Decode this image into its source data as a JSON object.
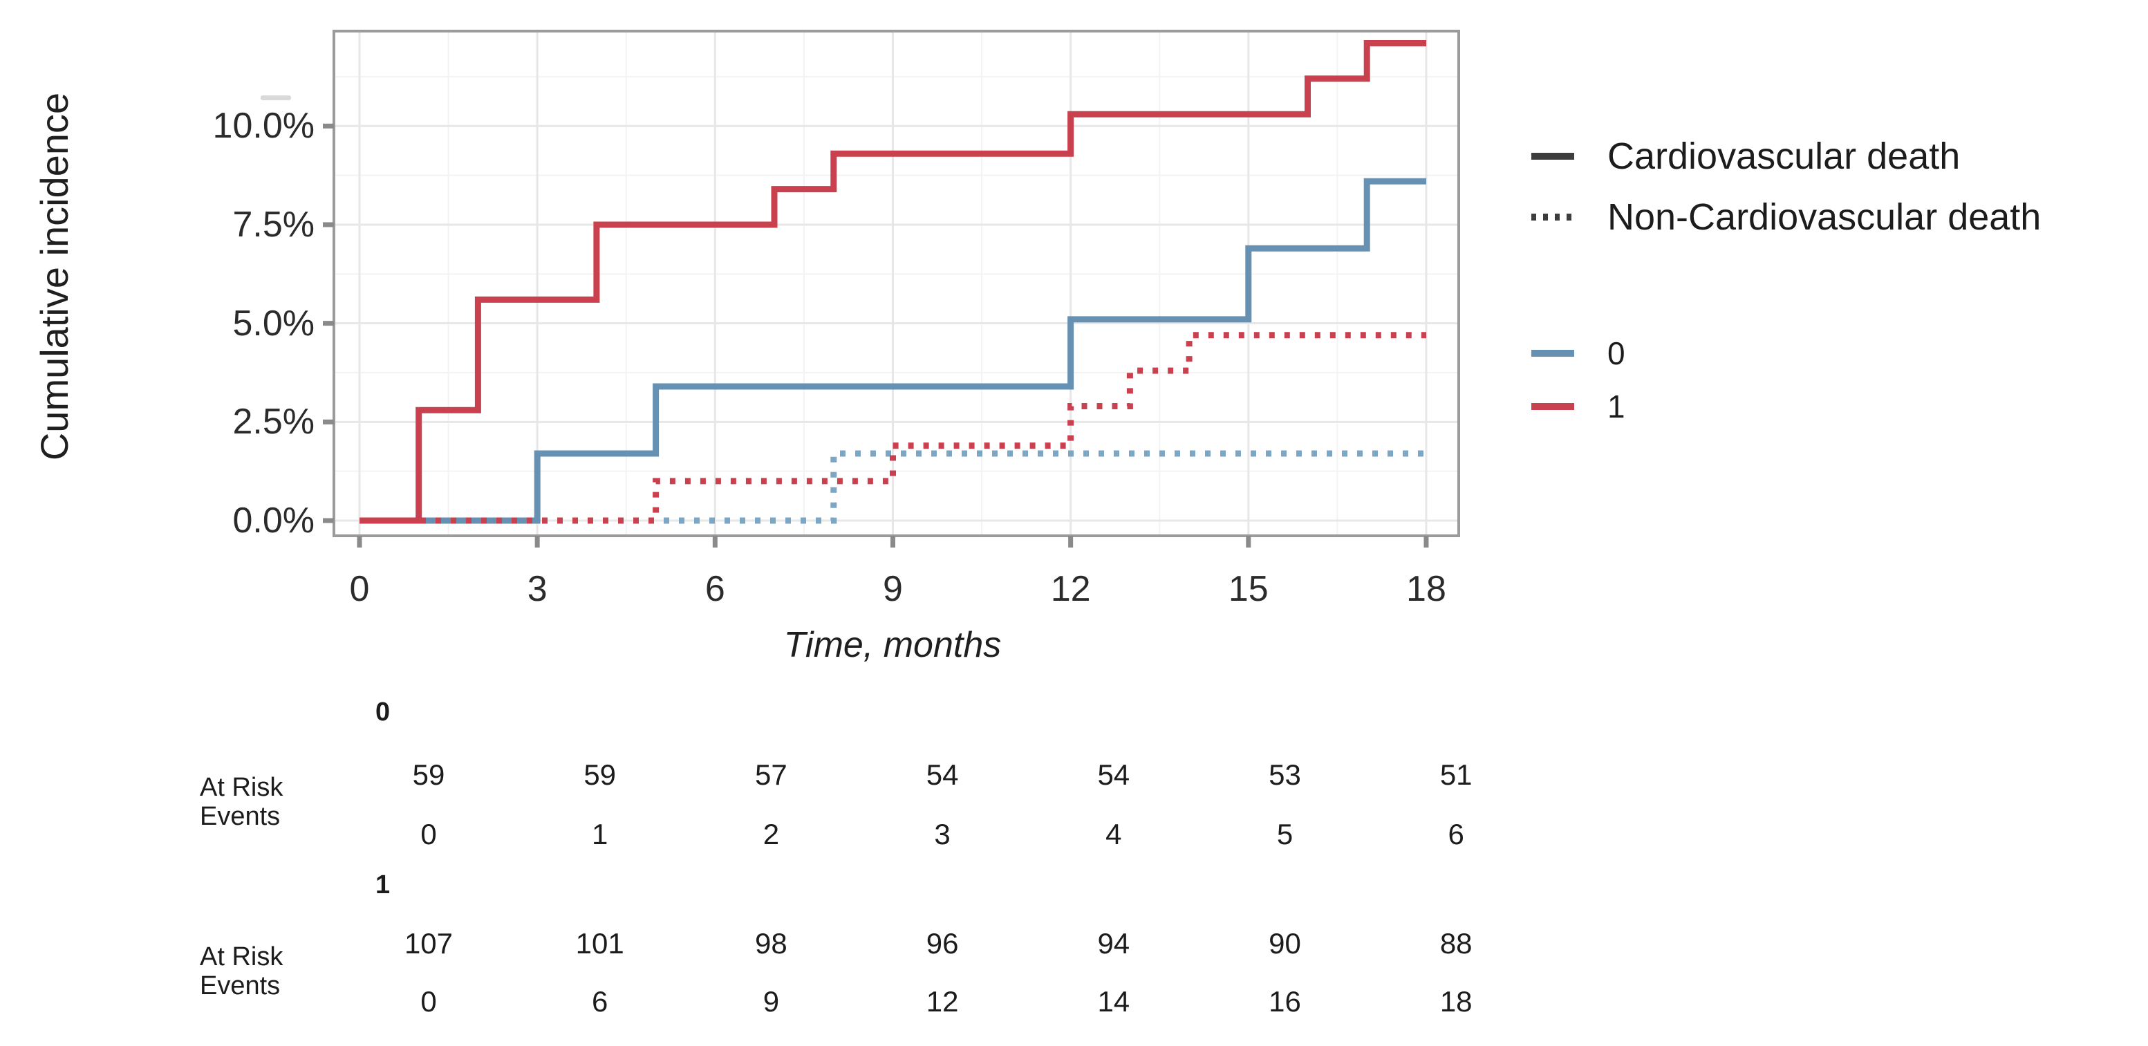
{
  "figure": {
    "background": "#ffffff"
  },
  "colors": {
    "red_series": "#c9404e",
    "blue_series": "#6791b2",
    "blue_dotted": "#7ba6c4",
    "legend_line": "#3d3d3d",
    "panel_border": "#9b9b9b",
    "tick_mark": "#8a8a8a",
    "grid_major": "#e7e7e7",
    "grid_minor": "#f3f3f3",
    "axis_text": "#262626"
  },
  "y_axis": {
    "title": "Cumulative incidence",
    "ticks": [
      {
        "label": "10.0%",
        "value": 10
      },
      {
        "label": "7.5%",
        "value": 7.5
      },
      {
        "label": "5.0%",
        "value": 5
      },
      {
        "label": "2.5%",
        "value": 2.5
      },
      {
        "label": "0.0%",
        "value": 0
      }
    ],
    "minor_values": [
      1.25,
      3.75,
      6.25,
      8.75,
      11.25
    ]
  },
  "x_axis": {
    "title": "Time, months",
    "ticks": [
      {
        "label": "0",
        "value": 0
      },
      {
        "label": "3",
        "value": 3
      },
      {
        "label": "6",
        "value": 6
      },
      {
        "label": "9",
        "value": 9
      },
      {
        "label": "12",
        "value": 12
      },
      {
        "label": "15",
        "value": 15
      },
      {
        "label": "18",
        "value": 18
      }
    ],
    "minor_values": [
      1.5,
      4.5,
      7.5,
      10.5,
      13.5,
      16.5
    ]
  },
  "legend": {
    "cause_entries": [
      {
        "label": "Cardiovascular death",
        "style": "solid",
        "y": 226
      },
      {
        "label": "Non-Cardiovascular death",
        "style": "dotted",
        "y": 314
      }
    ],
    "group_entries": [
      {
        "label": "0",
        "color": "#6791b2",
        "y": 511
      },
      {
        "label": "1",
        "color": "#c9404e",
        "y": 588
      }
    ]
  },
  "chart_data": {
    "type": "line",
    "subtype": "step-cumulative-incidence",
    "title": "",
    "xlabel": "Time, months",
    "ylabel": "Cumulative incidence",
    "xlim": [
      0,
      18
    ],
    "ylim_pct": [
      0,
      12.4
    ],
    "x_ticks": [
      0,
      3,
      6,
      9,
      12,
      15,
      18
    ],
    "y_ticks_pct": [
      0,
      2.5,
      5,
      7.5,
      10
    ],
    "grid": "major+minor",
    "legend_position": "right",
    "series": [
      {
        "name": "Cardiovascular death, group 1",
        "group": "1",
        "cause": "Cardiovascular death",
        "style": "solid",
        "color": "#c9404e",
        "steps": [
          [
            0,
            0
          ],
          [
            1,
            2.8
          ],
          [
            2,
            5.6
          ],
          [
            4,
            7.5
          ],
          [
            7,
            8.4
          ],
          [
            8,
            9.3
          ],
          [
            12,
            10.3
          ],
          [
            16,
            11.2
          ],
          [
            17,
            12.1
          ]
        ],
        "end_x": 18
      },
      {
        "name": "Cardiovascular death, group 0",
        "group": "0",
        "cause": "Cardiovascular death",
        "style": "solid",
        "color": "#6791b2",
        "steps": [
          [
            0,
            0
          ],
          [
            3,
            1.7
          ],
          [
            5,
            3.4
          ],
          [
            12,
            5.1
          ],
          [
            15,
            6.9
          ],
          [
            17,
            8.6
          ]
        ],
        "end_x": 18
      },
      {
        "name": "Non-Cardiovascular death, group 1",
        "group": "1",
        "cause": "Non-Cardiovascular death",
        "style": "dotted",
        "color": "#c9404e",
        "steps": [
          [
            0,
            0
          ],
          [
            5,
            1.0
          ],
          [
            9,
            1.9
          ],
          [
            12,
            2.9
          ],
          [
            13,
            3.8
          ],
          [
            14,
            4.7
          ]
        ],
        "end_x": 18
      },
      {
        "name": "Non-Cardiovascular death, group 0",
        "group": "0",
        "cause": "Non-Cardiovascular death",
        "style": "dotted",
        "color": "#7ba6c4",
        "steps": [
          [
            0,
            0
          ],
          [
            8,
            1.7
          ]
        ],
        "end_x": 18
      }
    ]
  },
  "risk_table": {
    "row_labels": [
      "At Risk",
      "Events"
    ],
    "time_points": [
      "0",
      "3",
      "6",
      "9",
      "12",
      "15",
      "18"
    ],
    "groups": [
      {
        "header": "0",
        "at_risk": [
          "59",
          "59",
          "57",
          "54",
          "54",
          "53",
          "51"
        ],
        "events": [
          "0",
          "1",
          "2",
          "3",
          "4",
          "5",
          "6"
        ]
      },
      {
        "header": "1",
        "at_risk": [
          "107",
          "101",
          "98",
          "96",
          "94",
          "90",
          "88"
        ],
        "events": [
          "0",
          "6",
          "9",
          "12",
          "14",
          "16",
          "18"
        ]
      }
    ]
  }
}
